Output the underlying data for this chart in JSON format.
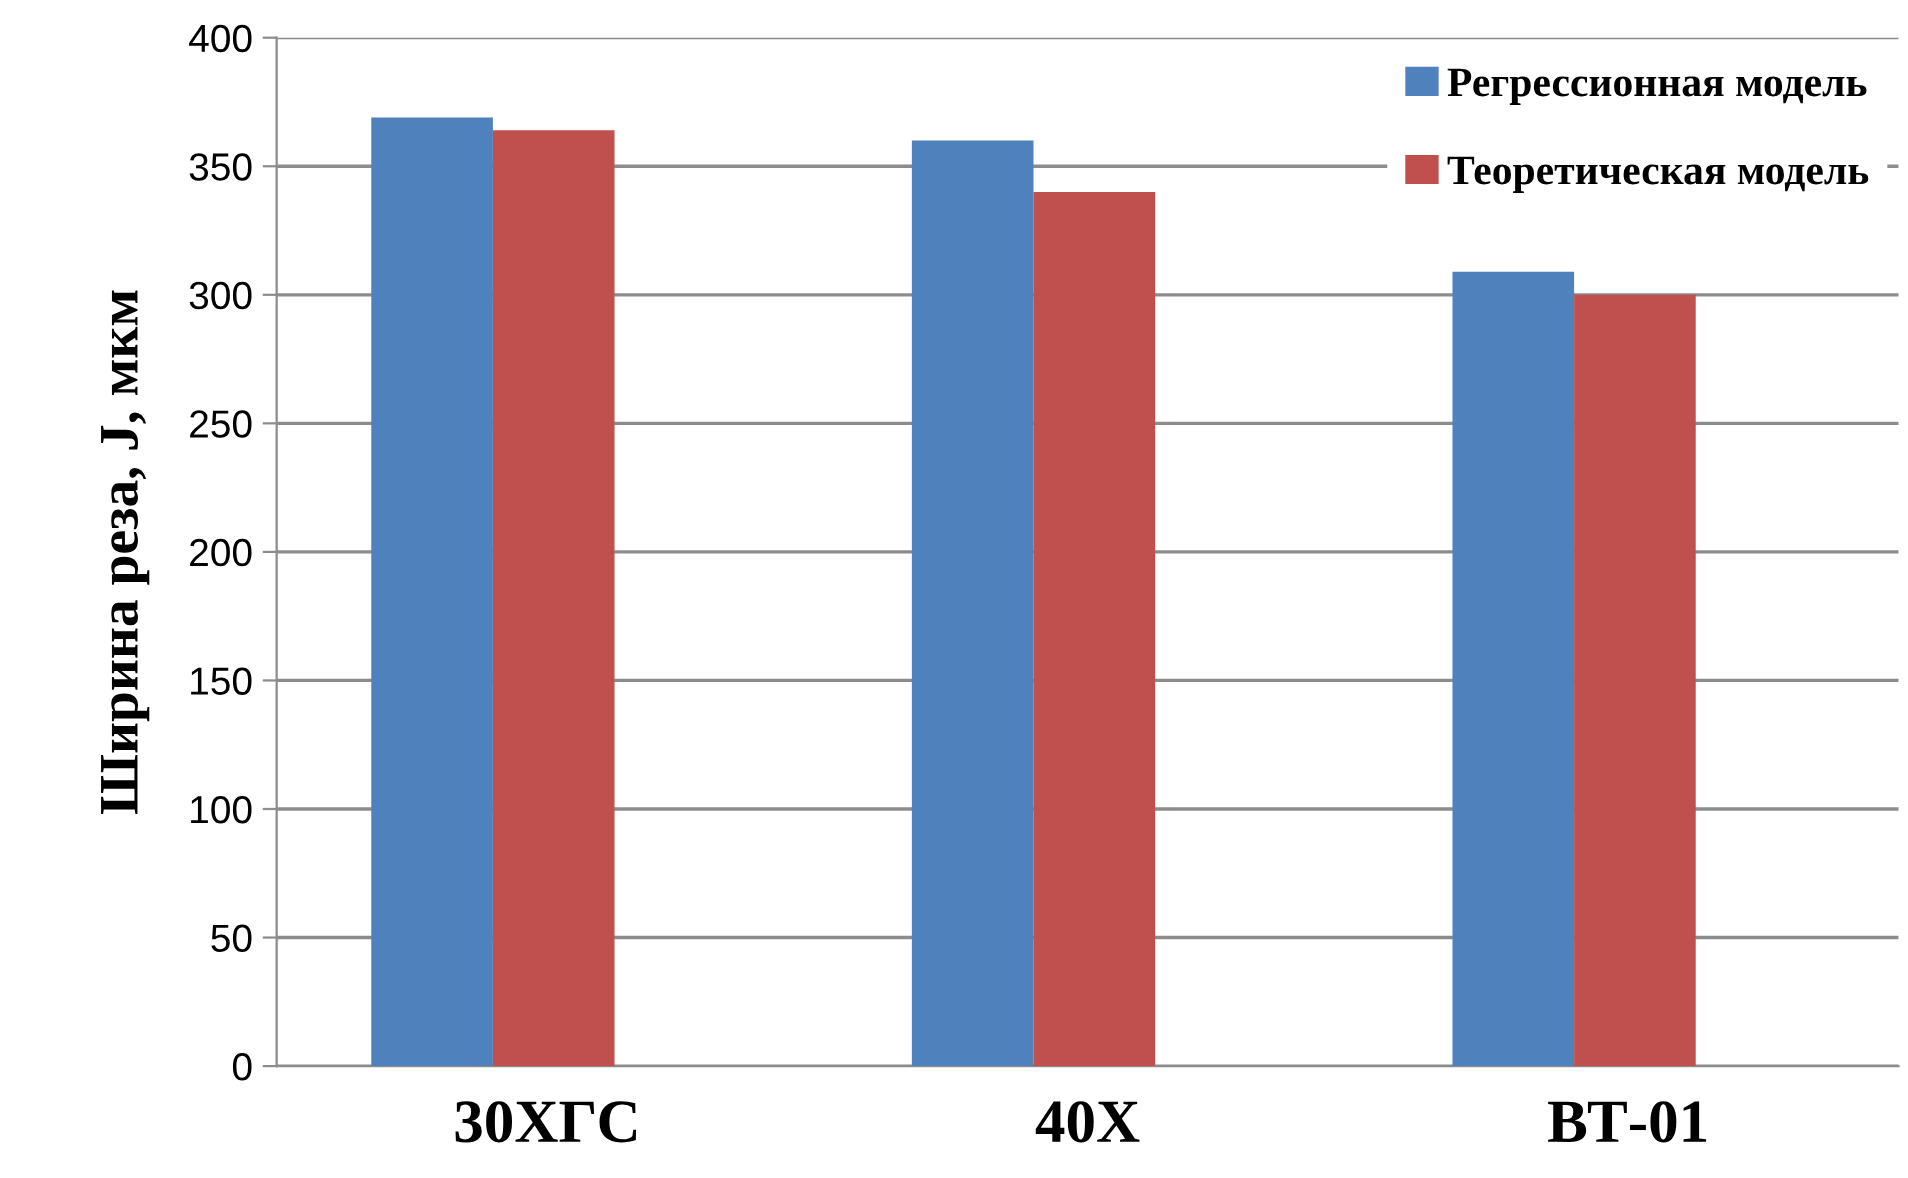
{
  "chart_data": {
    "type": "bar",
    "ylabel": "Ширина реза, J, мкм",
    "categories": [
      "30ХГС",
      "40Х",
      "ВТ-01"
    ],
    "series": [
      {
        "name": "Регрессионная модель",
        "color": "#4f81bd",
        "values": [
          369,
          360,
          309
        ]
      },
      {
        "name": "Теоретическая модель",
        "color": "#c0504d",
        "values": [
          364,
          340,
          300
        ]
      }
    ],
    "ylim": [
      0,
      400
    ],
    "yticks": [
      0,
      50,
      100,
      150,
      200,
      250,
      300,
      350,
      400
    ],
    "grid": "y",
    "legend": "top right"
  }
}
